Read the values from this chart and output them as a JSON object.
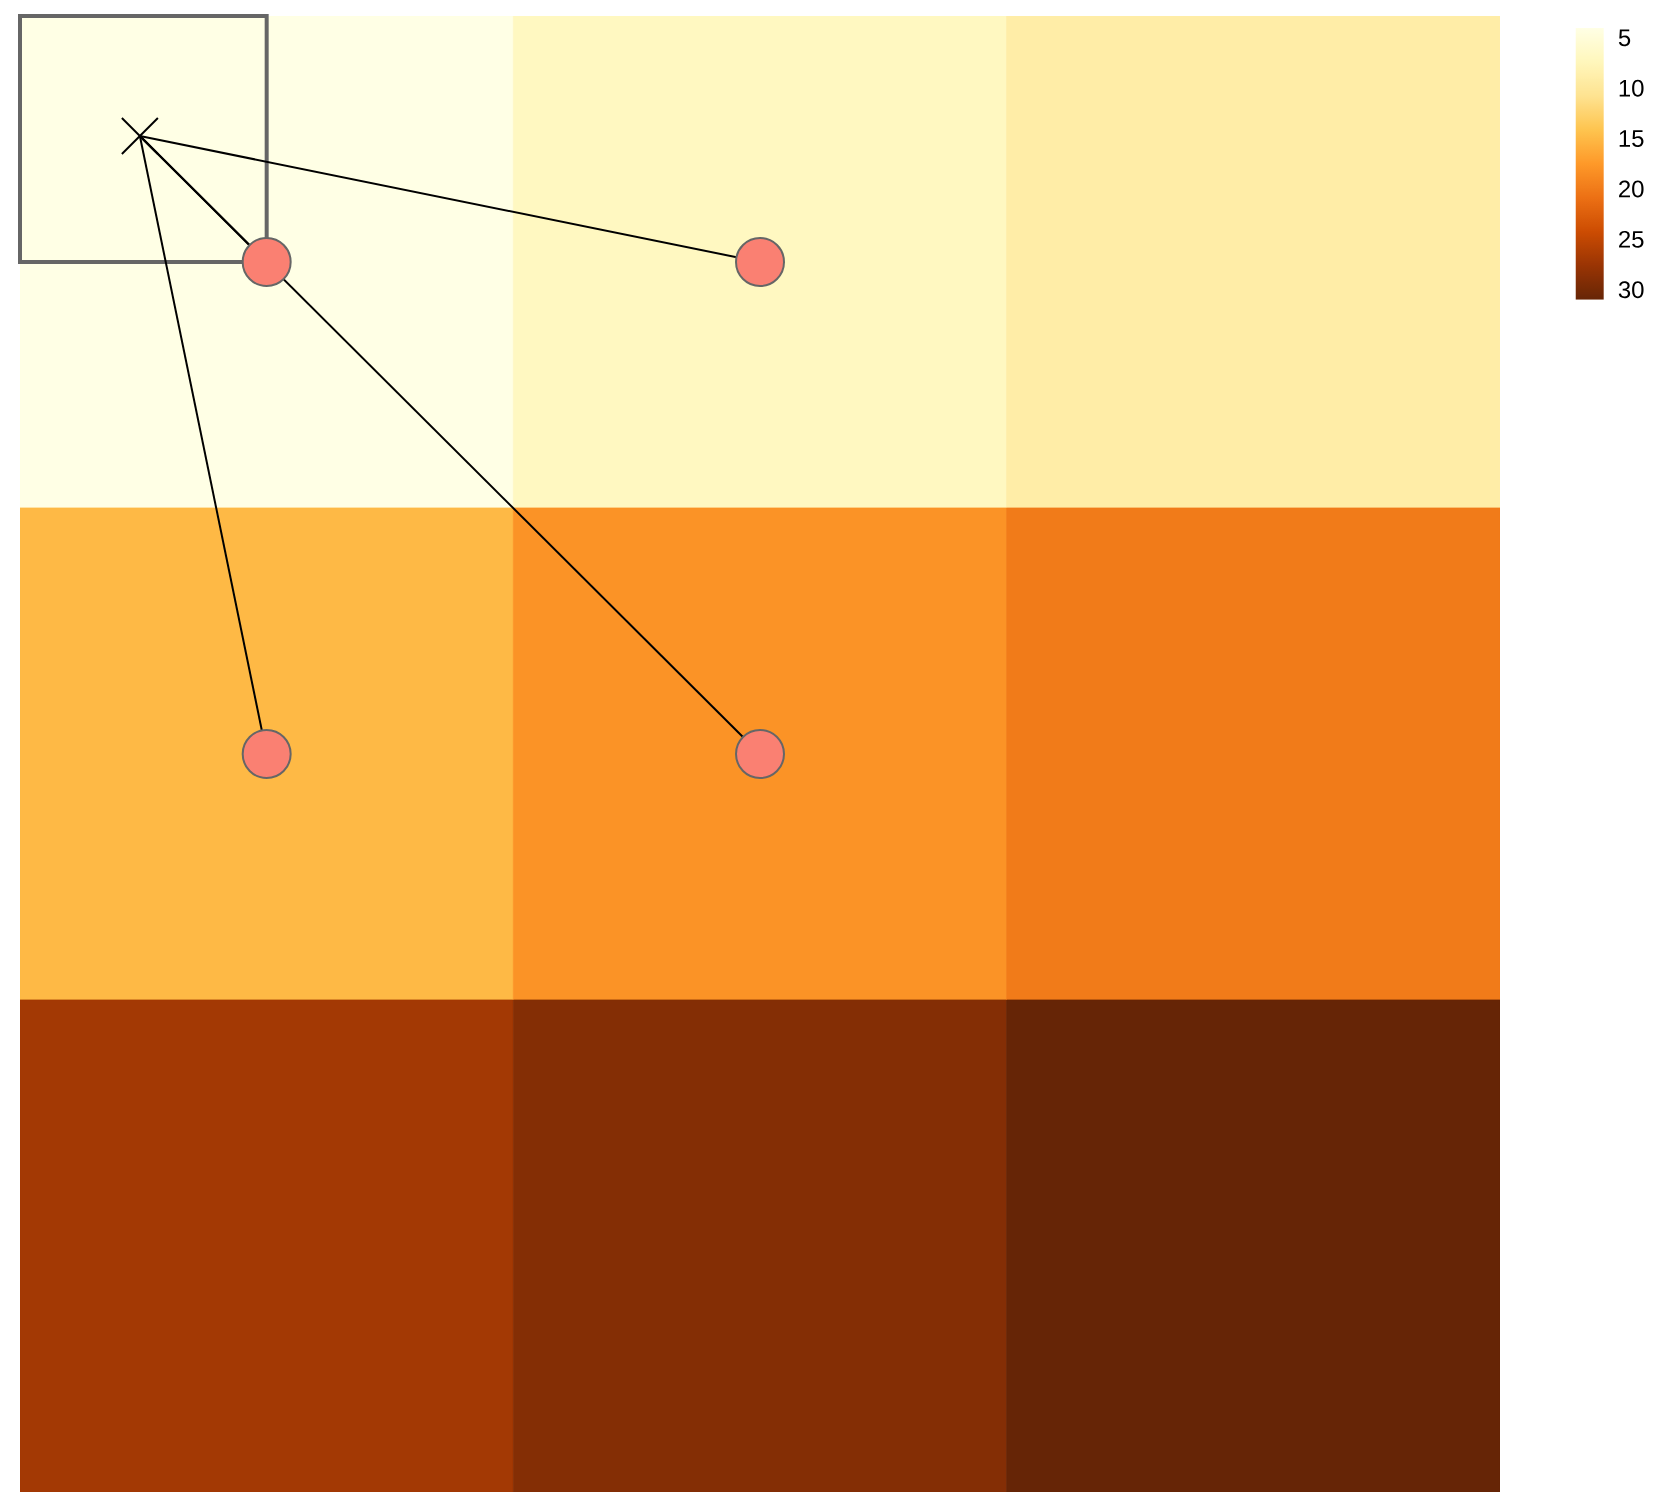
{
  "chart_data": {
    "type": "heatmap",
    "categories": [
      null,
      null,
      null
    ],
    "y_categories": [
      null,
      null,
      null
    ],
    "cells": [
      [
        4,
        7,
        9
      ],
      [
        15,
        18,
        20
      ],
      [
        27,
        29,
        31
      ]
    ],
    "colors": [
      "#ffffe5",
      "#fff7bc",
      "#fee391",
      "#fec44f",
      "#fe9929",
      "#ec7014",
      "#cc4c02",
      "#993404",
      "#662506"
    ],
    "clim": [
      4,
      31
    ],
    "cticks": [
      5,
      10,
      15,
      20,
      25,
      30
    ]
  }
}
